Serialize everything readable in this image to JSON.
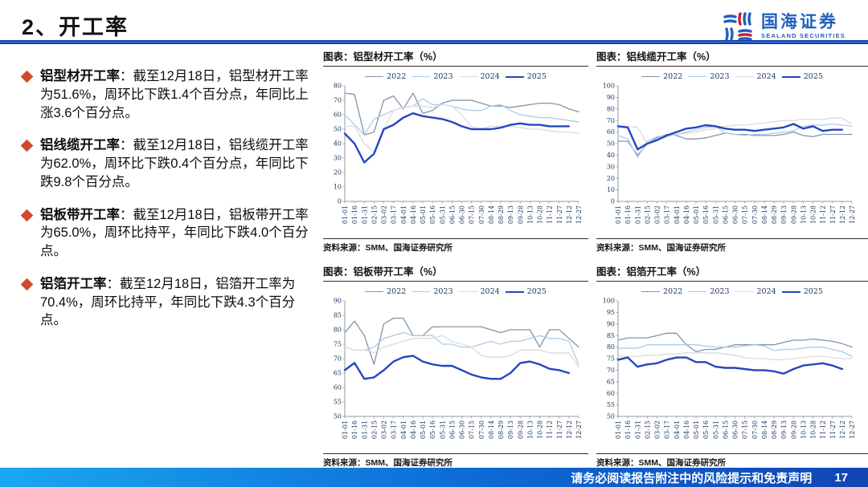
{
  "header": {
    "title": "2、开工率",
    "logo": {
      "cn": "国海证券",
      "en": "SEALAND SECURITIES"
    }
  },
  "bullets": [
    {
      "lead": "铝型材开工率",
      "body": "：截至12月18日，铝型材开工率为51.6%，周环比下跌1.4个百分点，年同比上涨3.6个百分点。"
    },
    {
      "lead": "铝线缆开工率",
      "body": "：截至12月18日，铝线缆开工率为62.0%，周环比下跌0.4个百分点，年同比下跌9.8个百分点。"
    },
    {
      "lead": "铝板带开工率",
      "body": "：截至12月18日，铝板带开工率为65.0%，周环比持平，年同比下跌4.0个百分点。"
    },
    {
      "lead": "铝箔开工率",
      "body": "：截至12月18日，铝箔开工率为70.4%，周环比持平，年同比下跌4.3个百分点。"
    }
  ],
  "source_label": "资料来源：SMM、国海证券研究所",
  "footer": {
    "disclaimer": "请务必阅读报告附注中的风险提示和免责声明",
    "page": "17"
  },
  "colors": {
    "2022": "#8594a8",
    "2023": "#aecbe8",
    "2024": "#d9dbde",
    "2025": "#2446c2",
    "accent_red": "#d2482a",
    "rule_blue": "#2f6fe0",
    "logo_blue": "#2060c0",
    "tick_navy": "#17365d"
  },
  "chart_data": [
    {
      "type": "line",
      "title": "图表：铝型材开工率（%）",
      "source": "资料来源：SMM、国海证券研究所",
      "xlabel": "",
      "ylabel": "%",
      "ylim": [
        0,
        80
      ],
      "ystep": 10,
      "grid": false,
      "legend_position": "top",
      "x": [
        "01-01",
        "01-16",
        "01-31",
        "02-15",
        "03-02",
        "03-17",
        "04-01",
        "04-16",
        "05-01",
        "05-16",
        "05-31",
        "06-15",
        "06-30",
        "07-15",
        "07-30",
        "08-14",
        "08-29",
        "09-13",
        "09-28",
        "10-13",
        "10-28",
        "11-12",
        "11-27",
        "12-12",
        "12-27"
      ],
      "series": [
        {
          "name": "2022",
          "values": [
            75,
            74,
            46,
            48,
            70,
            73,
            64,
            75,
            61,
            63,
            68,
            70,
            70,
            70,
            68,
            66,
            66,
            65,
            66,
            67,
            68,
            68,
            67,
            64,
            62
          ]
        },
        {
          "name": "2023",
          "values": [
            60,
            53,
            46,
            57,
            60,
            63,
            65,
            66,
            71,
            67,
            67,
            66,
            64,
            63,
            63,
            66,
            67,
            63,
            60,
            59,
            58,
            58,
            57,
            56,
            55
          ]
        },
        {
          "name": "2024",
          "values": [
            52,
            52,
            40,
            34,
            50,
            63,
            65,
            66,
            66,
            65,
            67,
            66,
            60,
            52,
            50,
            52,
            52,
            52,
            51,
            50,
            50,
            49,
            48,
            48,
            47
          ]
        },
        {
          "name": "2025",
          "values": [
            47,
            40,
            27,
            33,
            50,
            53,
            58,
            61,
            59,
            58,
            57,
            55,
            52,
            50,
            50,
            50,
            51,
            53,
            54,
            53,
            53,
            52,
            52,
            52,
            null
          ]
        }
      ]
    },
    {
      "type": "line",
      "title": "图表：铝线缆开工率（%）",
      "source": "资料来源：SMM、国海证券研究所",
      "xlabel": "",
      "ylabel": "%",
      "ylim": [
        0,
        100
      ],
      "ystep": 10,
      "grid": false,
      "legend_position": "top",
      "x": [
        "01-01",
        "01-16",
        "01-31",
        "02-15",
        "03-02",
        "03-17",
        "04-01",
        "04-16",
        "05-01",
        "05-16",
        "05-31",
        "06-15",
        "06-30",
        "07-15",
        "07-30",
        "08-14",
        "08-29",
        "09-13",
        "09-28",
        "10-13",
        "10-28",
        "11-12",
        "11-27",
        "12-12",
        "12-27"
      ],
      "series": [
        {
          "name": "2022",
          "values": [
            52,
            52,
            40,
            50,
            55,
            58,
            57,
            54,
            54,
            55,
            57,
            59,
            58,
            58,
            57,
            57,
            57,
            58,
            60,
            57,
            56,
            58,
            58,
            58,
            58
          ]
        },
        {
          "name": "2023",
          "values": [
            57,
            54,
            38,
            52,
            56,
            57,
            58,
            60,
            62,
            64,
            65,
            59,
            58,
            57,
            58,
            58,
            59,
            60,
            61,
            65,
            66,
            66,
            67,
            66,
            65
          ]
        },
        {
          "name": "2024",
          "values": [
            65,
            65,
            64,
            50,
            53,
            56,
            58,
            59,
            60,
            62,
            63,
            65,
            66,
            66,
            67,
            68,
            69,
            70,
            70,
            71,
            71,
            71,
            72,
            72,
            67
          ]
        },
        {
          "name": "2025",
          "values": [
            65,
            64,
            45,
            50,
            53,
            57,
            60,
            63,
            64,
            66,
            65,
            63,
            62,
            62,
            61,
            62,
            63,
            64,
            67,
            63,
            65,
            61,
            62,
            62,
            null
          ]
        }
      ]
    },
    {
      "type": "line",
      "title": "图表：铝板带开工率（%）",
      "source": "资料来源：SMM、国海证券研究所",
      "xlabel": "",
      "ylabel": "%",
      "ylim": [
        50,
        90
      ],
      "ystep": 5,
      "grid": false,
      "legend_position": "top",
      "x": [
        "01-01",
        "01-16",
        "01-31",
        "02-15",
        "03-02",
        "03-17",
        "04-01",
        "04-16",
        "05-01",
        "05-16",
        "05-31",
        "06-15",
        "06-30",
        "07-15",
        "07-30",
        "08-14",
        "08-29",
        "09-13",
        "09-28",
        "10-13",
        "10-28",
        "11-12",
        "11-27",
        "12-12",
        "12-27"
      ],
      "series": [
        {
          "name": "2022",
          "values": [
            79,
            83,
            78,
            68,
            82,
            84,
            84,
            78,
            78,
            81,
            81,
            81,
            81,
            81,
            81,
            80,
            79,
            80,
            80,
            80,
            74,
            80,
            80,
            77,
            74
          ]
        },
        {
          "name": "2023",
          "values": [
            74,
            73,
            73,
            74,
            77,
            78,
            79,
            78,
            78,
            78,
            75,
            75,
            74,
            74,
            75,
            76,
            75,
            76,
            76,
            77,
            78,
            77,
            77,
            76,
            68
          ]
        },
        {
          "name": "2024",
          "values": [
            74,
            73,
            73,
            72,
            74,
            75,
            76,
            77,
            77,
            77,
            78,
            76,
            75,
            74,
            71,
            70.5,
            70.5,
            71,
            73,
            73,
            73,
            72,
            72,
            72,
            67
          ]
        },
        {
          "name": "2025",
          "values": [
            66,
            68.5,
            63,
            63.5,
            66,
            69,
            70.5,
            71,
            69,
            68,
            67.5,
            67.5,
            66,
            64.5,
            63.5,
            63,
            63,
            65,
            68.5,
            69,
            68,
            66.5,
            66,
            65,
            null
          ]
        }
      ]
    },
    {
      "type": "line",
      "title": "图表：铝箔开工率（%）",
      "source": "资料来源：SMM、国海证券研究所",
      "xlabel": "",
      "ylabel": "%",
      "ylim": [
        50,
        100
      ],
      "ystep": 5,
      "grid": false,
      "legend_position": "top",
      "x": [
        "01-01",
        "01-16",
        "01-31",
        "02-15",
        "03-02",
        "03-17",
        "04-01",
        "04-16",
        "05-01",
        "05-16",
        "05-31",
        "06-15",
        "06-30",
        "07-15",
        "07-30",
        "08-14",
        "08-29",
        "09-13",
        "09-28",
        "10-13",
        "10-28",
        "11-12",
        "11-27",
        "12-12",
        "12-27"
      ],
      "series": [
        {
          "name": "2022",
          "values": [
            83,
            84,
            84,
            84,
            85,
            86,
            86,
            81,
            78,
            79,
            79,
            80,
            81,
            81,
            81,
            81,
            81,
            82,
            83,
            83,
            83.5,
            83,
            82.5,
            81.5,
            80
          ]
        },
        {
          "name": "2023",
          "values": [
            79.5,
            79.5,
            79.5,
            81,
            81,
            81,
            81,
            81,
            81,
            80.5,
            80,
            80,
            80,
            80.5,
            81,
            80.5,
            78.5,
            79,
            79,
            79.5,
            80,
            80,
            79,
            78,
            76
          ]
        },
        {
          "name": "2024",
          "values": [
            76,
            76,
            76,
            76.5,
            76.5,
            77,
            77,
            77.5,
            77.5,
            77.5,
            77.5,
            77,
            76.5,
            75.5,
            75,
            75,
            74.5,
            74.5,
            75,
            75.5,
            76,
            76,
            75.5,
            75,
            75
          ]
        },
        {
          "name": "2025",
          "values": [
            74.5,
            75.5,
            71.5,
            72.5,
            73,
            74.5,
            75.5,
            75.5,
            73.5,
            73.5,
            71.5,
            71,
            71,
            70.5,
            70,
            70,
            69.5,
            68.5,
            70.5,
            72,
            72.5,
            73,
            72,
            70.5,
            null
          ]
        }
      ]
    }
  ]
}
